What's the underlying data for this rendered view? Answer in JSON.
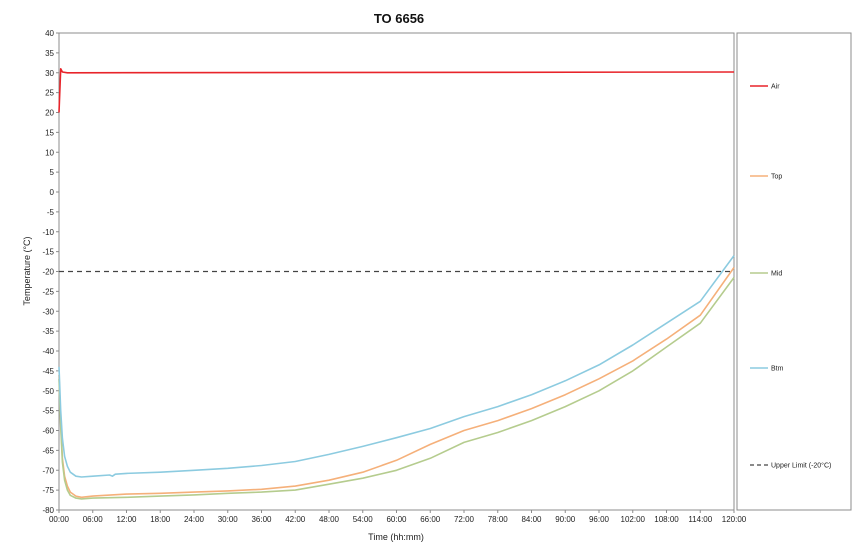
{
  "chart_data": {
    "type": "line",
    "title": "TO 6656",
    "xlabel": "Time (hh:mm)",
    "ylabel": "Temperature (°C)",
    "xlim": [
      0,
      120
    ],
    "ylim": [
      -80,
      40
    ],
    "x_tick_labels": [
      "00:00",
      "06:00",
      "12:00",
      "18:00",
      "24:00",
      "30:00",
      "36:00",
      "42:00",
      "48:00",
      "54:00",
      "60:00",
      "66:00",
      "72:00",
      "78:00",
      "84:00",
      "90:00",
      "96:00",
      "102:00",
      "108:00",
      "114:00",
      "120:00"
    ],
    "y_ticks": [
      40,
      35,
      30,
      25,
      20,
      15,
      10,
      5,
      0,
      -5,
      -10,
      -15,
      -20,
      -25,
      -30,
      -35,
      -40,
      -45,
      -50,
      -55,
      -60,
      -65,
      -70,
      -75,
      -80
    ],
    "grid": false,
    "legend_placement": "right",
    "series": [
      {
        "name": "Air",
        "color": "#e8242a",
        "dash": false,
        "x": [
          0,
          0.3,
          0.6,
          1.5,
          120
        ],
        "y": [
          20,
          31,
          30.2,
          30,
          30.2
        ]
      },
      {
        "name": "Top",
        "color": "#f5b07a",
        "dash": false,
        "x": [
          0,
          0.3,
          0.6,
          1,
          1.5,
          2,
          3,
          4,
          6,
          12,
          18,
          24,
          30,
          36,
          42,
          48,
          54,
          60,
          66,
          72,
          78,
          84,
          90,
          96,
          102,
          108,
          114,
          120
        ],
        "y": [
          -46,
          -58,
          -67,
          -71.5,
          -74,
          -75.5,
          -76.5,
          -76.8,
          -76.5,
          -76,
          -75.8,
          -75.5,
          -75.2,
          -74.8,
          -74,
          -72.5,
          -70.5,
          -67.5,
          -63.5,
          -60,
          -57.5,
          -54.5,
          -51,
          -47,
          -42.5,
          -37,
          -31,
          -19
        ]
      },
      {
        "name": "Mid",
        "color": "#b5cc8e",
        "dash": false,
        "x": [
          0,
          0.3,
          0.6,
          1,
          1.5,
          2,
          3,
          4,
          6,
          12,
          18,
          24,
          30,
          36,
          42,
          48,
          54,
          60,
          66,
          72,
          78,
          84,
          90,
          96,
          102,
          108,
          114,
          120
        ],
        "y": [
          -47,
          -59,
          -68,
          -72.5,
          -75,
          -76.3,
          -77,
          -77.2,
          -77,
          -76.8,
          -76.5,
          -76.2,
          -75.8,
          -75.5,
          -75,
          -73.5,
          -72,
          -70,
          -67,
          -63,
          -60.5,
          -57.5,
          -54,
          -50,
          -45,
          -39,
          -33,
          -21.5
        ]
      },
      {
        "name": "Btm",
        "color": "#8ccbe0",
        "dash": false,
        "x": [
          0,
          0.3,
          0.6,
          1,
          1.5,
          2,
          3,
          4,
          6,
          9,
          9.5,
          10,
          12,
          18,
          24,
          30,
          36,
          42,
          48,
          54,
          60,
          66,
          72,
          78,
          84,
          90,
          96,
          102,
          108,
          114,
          120
        ],
        "y": [
          -44,
          -55,
          -62,
          -66.5,
          -69,
          -70.5,
          -71.5,
          -71.7,
          -71.5,
          -71.2,
          -71.5,
          -71,
          -70.8,
          -70.5,
          -70,
          -69.5,
          -68.8,
          -67.8,
          -66,
          -64,
          -61.8,
          -59.5,
          -56.5,
          -54,
          -51,
          -47.5,
          -43.5,
          -38.5,
          -33,
          -27.5,
          -16
        ]
      },
      {
        "name": "Upper Limit (-20°C)",
        "color": "#444444",
        "dash": true,
        "x": [
          0,
          120
        ],
        "y": [
          -20,
          -20
        ]
      }
    ]
  }
}
